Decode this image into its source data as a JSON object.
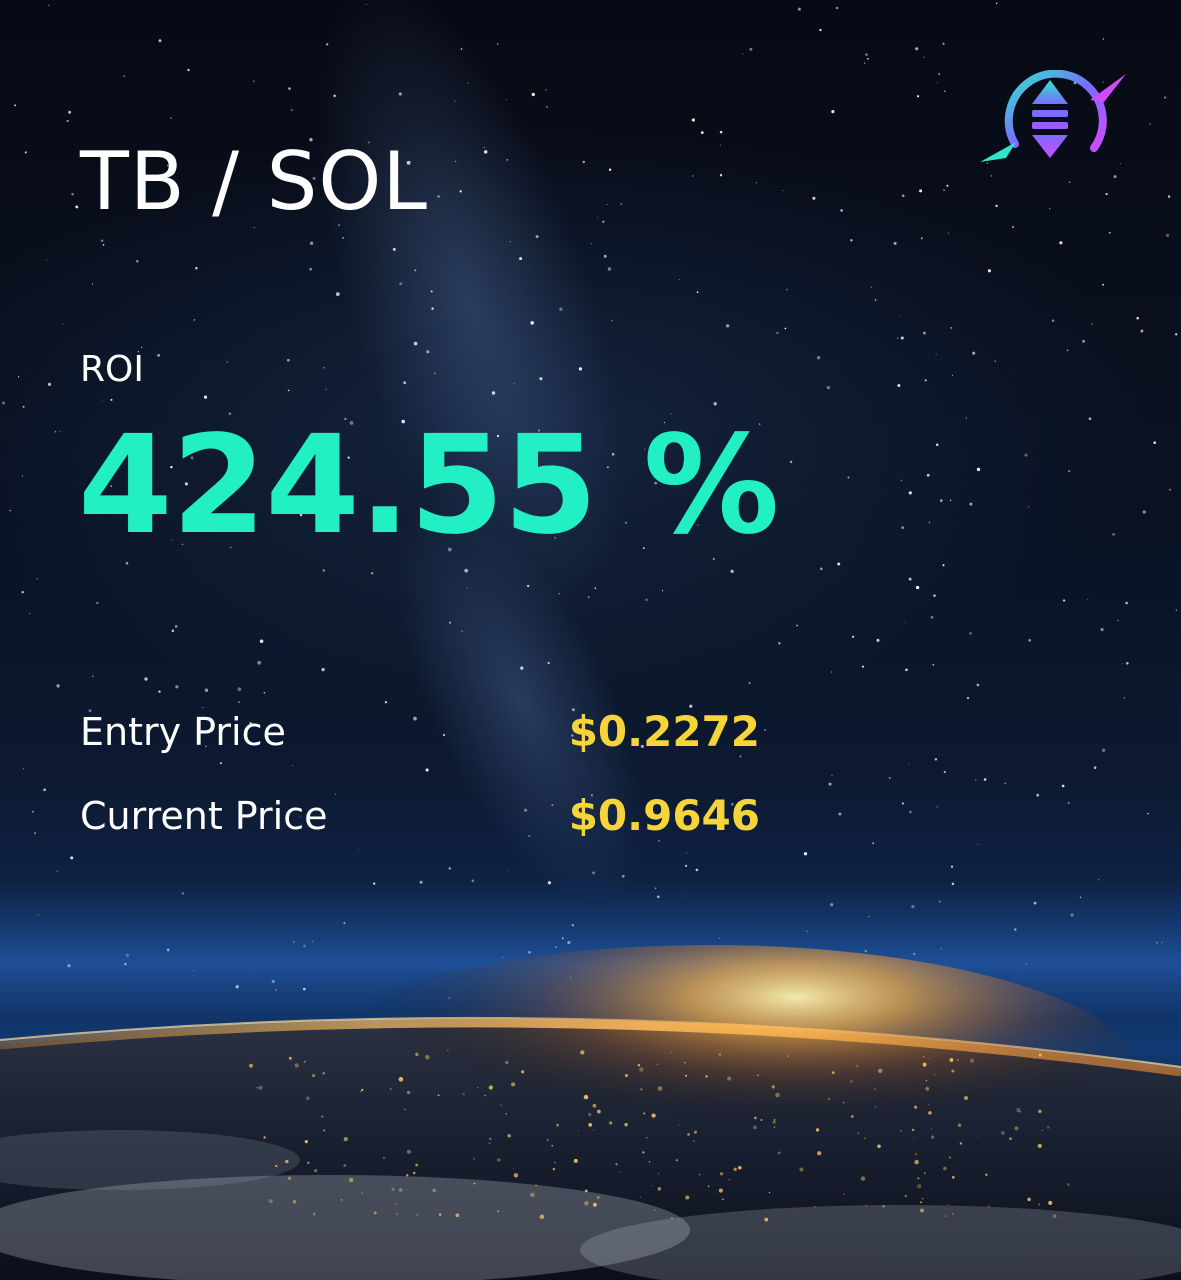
{
  "card": {
    "pair_title": "TB / SOL",
    "roi_label": "ROI",
    "roi_value": "424.55 %",
    "entry_price_label": "Entry Price",
    "entry_price_value": "$0.2272",
    "current_price_label": "Current Price",
    "current_price_value": "$0.9646"
  },
  "colors": {
    "roi": "#22f0c4",
    "price": "#f5d53a",
    "logo_gradient": [
      "#2fe6c8",
      "#7b6cff",
      "#d04bff"
    ]
  },
  "icons": {
    "logo": "exchange-logo-icon"
  }
}
